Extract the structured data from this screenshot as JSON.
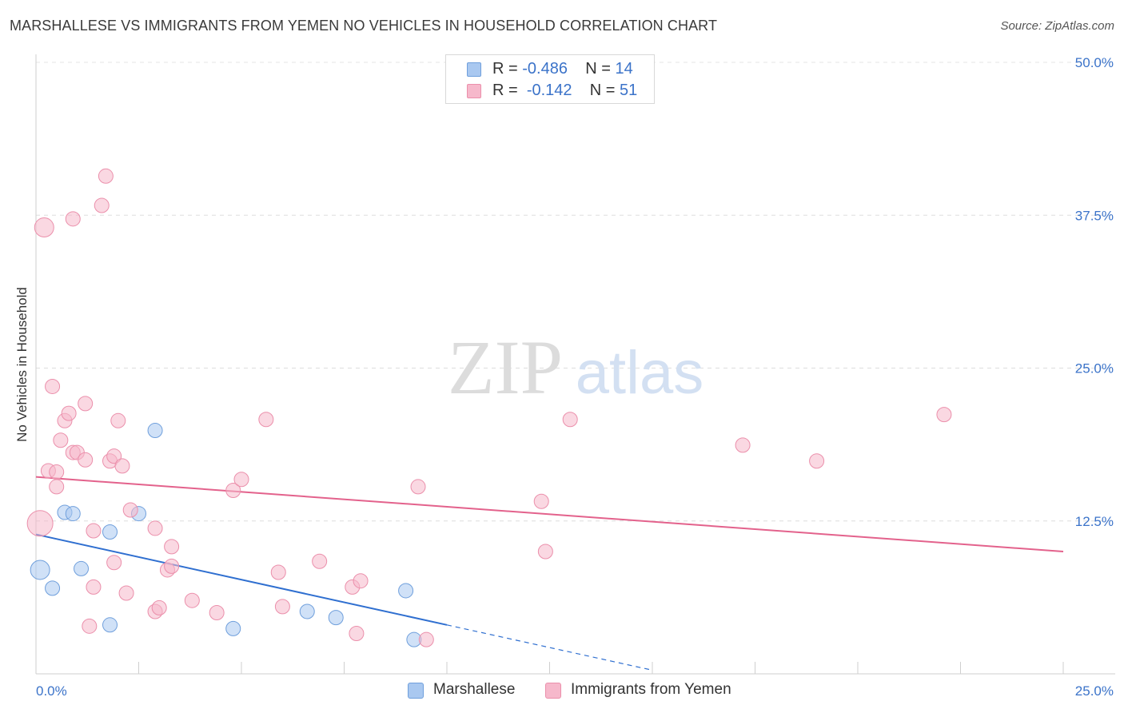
{
  "title": "MARSHALLESE VS IMMIGRANTS FROM YEMEN NO VEHICLES IN HOUSEHOLD CORRELATION CHART",
  "source": "Source: ZipAtlas.com",
  "watermark": {
    "zip": "ZIP",
    "atlas": "atlas"
  },
  "legend_top": [
    {
      "r_label": "R = ",
      "r_value": "-0.486",
      "n_label": "N = ",
      "n_value": "14",
      "color": "#a9c8f0"
    },
    {
      "r_label": "R = ",
      "r_value": "-0.142",
      "n_label": "N = ",
      "n_value": "51",
      "color": "#f6b8cb"
    }
  ],
  "legend_bottom": [
    {
      "label": "Marshallese",
      "color": "#a9c8f0"
    },
    {
      "label": "Immigrants from Yemen",
      "color": "#f6b8cb"
    }
  ],
  "chart_data": {
    "type": "scatter",
    "title": "MARSHALLESE VS IMMIGRANTS FROM YEMEN NO VEHICLES IN HOUSEHOLD CORRELATION CHART",
    "xlabel": "",
    "ylabel": "No Vehicles in Household",
    "xlim": [
      0,
      25
    ],
    "ylim": [
      0,
      50
    ],
    "x_tick_labels": [
      "0.0%",
      "25.0%"
    ],
    "y_tick_labels": [
      "12.5%",
      "25.0%",
      "37.5%",
      "50.0%"
    ],
    "y_tick_values": [
      12.5,
      25.0,
      37.5,
      50.0
    ],
    "grid": true,
    "legend_position": "top-center",
    "series": [
      {
        "name": "Marshallese",
        "color": "#a9c8f0",
        "stroke": "#6f9fdc",
        "line_color": "#2f6fd0",
        "trend": {
          "x0": 0,
          "y0": 11.4,
          "x1": 10.0,
          "y1": 4.0,
          "dash_to_x": 15.0
        },
        "points": [
          [
            0.1,
            8.5,
            12
          ],
          [
            0.4,
            7.0,
            9
          ],
          [
            0.7,
            13.2,
            9
          ],
          [
            0.9,
            13.1,
            9
          ],
          [
            1.1,
            8.6,
            9
          ],
          [
            1.8,
            11.6,
            9
          ],
          [
            1.8,
            4.0,
            9
          ],
          [
            2.5,
            13.1,
            9
          ],
          [
            2.9,
            19.9,
            9
          ],
          [
            4.8,
            3.7,
            9
          ],
          [
            6.6,
            5.1,
            9
          ],
          [
            7.3,
            4.6,
            9
          ],
          [
            9.0,
            6.8,
            9
          ],
          [
            9.2,
            2.8,
            9
          ]
        ]
      },
      {
        "name": "Immigrants from Yemen",
        "color": "#f6b8cb",
        "stroke": "#eb8fab",
        "line_color": "#e3628c",
        "trend": {
          "x0": 0,
          "y0": 16.1,
          "x1": 25.0,
          "y1": 10.0
        },
        "points": [
          [
            0.1,
            12.3,
            16
          ],
          [
            0.2,
            36.5,
            12
          ],
          [
            0.3,
            16.6,
            9
          ],
          [
            0.4,
            23.5,
            9
          ],
          [
            0.5,
            16.5,
            9
          ],
          [
            0.5,
            15.3,
            9
          ],
          [
            0.6,
            19.1,
            9
          ],
          [
            0.7,
            20.7,
            9
          ],
          [
            0.8,
            21.3,
            9
          ],
          [
            0.9,
            37.2,
            9
          ],
          [
            0.9,
            18.1,
            9
          ],
          [
            1.0,
            18.1,
            9
          ],
          [
            1.2,
            22.1,
            9
          ],
          [
            1.2,
            17.5,
            9
          ],
          [
            1.3,
            3.9,
            9
          ],
          [
            1.4,
            11.7,
            9
          ],
          [
            1.4,
            7.1,
            9
          ],
          [
            1.6,
            38.3,
            9
          ],
          [
            1.7,
            40.7,
            9
          ],
          [
            1.8,
            17.4,
            9
          ],
          [
            1.9,
            9.1,
            9
          ],
          [
            1.9,
            17.8,
            9
          ],
          [
            2.0,
            20.7,
            9
          ],
          [
            2.1,
            17.0,
            9
          ],
          [
            2.2,
            6.6,
            9
          ],
          [
            2.3,
            13.4,
            9
          ],
          [
            2.9,
            11.9,
            9
          ],
          [
            2.9,
            5.1,
            9
          ],
          [
            3.0,
            5.4,
            9
          ],
          [
            3.2,
            8.5,
            9
          ],
          [
            3.3,
            8.8,
            9
          ],
          [
            3.3,
            10.4,
            9
          ],
          [
            3.8,
            6.0,
            9
          ],
          [
            4.4,
            5.0,
            9
          ],
          [
            4.8,
            15.0,
            9
          ],
          [
            5.0,
            15.9,
            9
          ],
          [
            5.6,
            20.8,
            9
          ],
          [
            5.9,
            8.3,
            9
          ],
          [
            6.0,
            5.5,
            9
          ],
          [
            6.9,
            9.2,
            9
          ],
          [
            7.7,
            7.1,
            9
          ],
          [
            7.8,
            3.3,
            9
          ],
          [
            7.9,
            7.6,
            9
          ],
          [
            9.3,
            15.3,
            9
          ],
          [
            9.5,
            2.8,
            9
          ],
          [
            12.3,
            14.1,
            9
          ],
          [
            12.4,
            10.0,
            9
          ],
          [
            13.0,
            20.8,
            9
          ],
          [
            17.2,
            18.7,
            9
          ],
          [
            19.0,
            17.4,
            9
          ],
          [
            22.1,
            21.2,
            9
          ]
        ]
      }
    ]
  }
}
